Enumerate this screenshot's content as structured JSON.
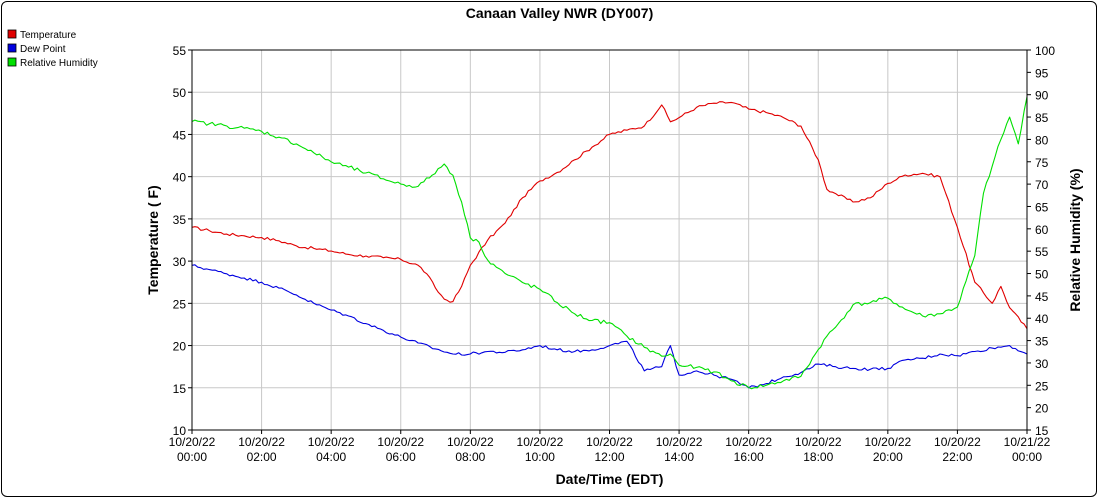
{
  "chart_data": {
    "type": "line",
    "title": "Canaan Valley NWR (DY007)",
    "xlabel": "Date/Time (EDT)",
    "ylabel_left": "Temperature ( F)",
    "ylabel_right": "Relative Humidity (%)",
    "ylim_left": [
      10,
      55
    ],
    "ylim_right": [
      15,
      100
    ],
    "y_ticks_left": [
      "10",
      "15",
      "20",
      "25",
      "30",
      "35",
      "40",
      "45",
      "50",
      "55"
    ],
    "y_ticks_right": [
      "15",
      "20",
      "25",
      "30",
      "35",
      "40",
      "45",
      "50",
      "55",
      "60",
      "65",
      "70",
      "75",
      "80",
      "85",
      "90",
      "95",
      "100"
    ],
    "x_range_hours": [
      0,
      24
    ],
    "x_ticks": [
      {
        "date": "10/20/22",
        "time": "00:00"
      },
      {
        "date": "10/20/22",
        "time": "02:00"
      },
      {
        "date": "10/20/22",
        "time": "04:00"
      },
      {
        "date": "10/20/22",
        "time": "06:00"
      },
      {
        "date": "10/20/22",
        "time": "08:00"
      },
      {
        "date": "10/20/22",
        "time": "10:00"
      },
      {
        "date": "10/20/22",
        "time": "12:00"
      },
      {
        "date": "10/20/22",
        "time": "14:00"
      },
      {
        "date": "10/20/22",
        "time": "16:00"
      },
      {
        "date": "10/20/22",
        "time": "18:00"
      },
      {
        "date": "10/20/22",
        "time": "20:00"
      },
      {
        "date": "10/20/22",
        "time": "22:00"
      },
      {
        "date": "10/21/22",
        "time": "00:00"
      }
    ],
    "grid": true,
    "legend_position": "top-left",
    "x_unit": "hours since 10/20/22 00:00",
    "series": [
      {
        "name": "Temperature",
        "axis": "left",
        "color": "#e00000",
        "x": [
          0,
          0.5,
          1,
          1.5,
          2,
          2.5,
          3,
          3.5,
          4,
          4.5,
          5,
          5.5,
          6,
          6.5,
          6.75,
          7,
          7.25,
          7.5,
          7.75,
          8,
          8.5,
          9,
          9.5,
          10,
          10.5,
          11,
          11.5,
          12,
          12.5,
          13,
          13.5,
          13.75,
          14,
          14.5,
          15,
          15.5,
          16,
          16.5,
          17,
          17.5,
          18,
          18.25,
          18.5,
          19,
          19.5,
          20,
          20.5,
          21,
          21.5,
          22,
          22.5,
          23,
          23.25,
          23.5,
          24
        ],
        "y": [
          34,
          33.6,
          33.2,
          33,
          32.8,
          32.4,
          31.8,
          31.5,
          31.2,
          30.8,
          30.6,
          30.4,
          30.2,
          29.5,
          28.5,
          26.8,
          25.5,
          25.2,
          27,
          29.5,
          32.5,
          34.5,
          37.5,
          39.5,
          40.5,
          42,
          43.5,
          45,
          45.5,
          46,
          48.5,
          46.5,
          47,
          48.2,
          48.7,
          48.8,
          48,
          47.6,
          47,
          46,
          42,
          38.5,
          38,
          37,
          37.5,
          39.2,
          40.2,
          40.4,
          40,
          34,
          27.5,
          25,
          27,
          24.5,
          22
        ]
      },
      {
        "name": "Dew Point",
        "axis": "left",
        "color": "#0000e0",
        "x": [
          0,
          0.5,
          1,
          1.5,
          2,
          2.5,
          3,
          3.5,
          4,
          4.5,
          5,
          5.5,
          6,
          6.5,
          7,
          7.5,
          8,
          8.5,
          9,
          9.5,
          10,
          10.5,
          11,
          11.5,
          12,
          12.5,
          13,
          13.5,
          13.75,
          14,
          14.5,
          15,
          15.5,
          16,
          16.5,
          17,
          17.5,
          18,
          18.5,
          19,
          19.5,
          20,
          20.5,
          21,
          21.5,
          22,
          22.5,
          23,
          23.5,
          24
        ],
        "y": [
          29.5,
          29,
          28.5,
          28,
          27.5,
          26.8,
          26,
          25,
          24.2,
          23.5,
          22.6,
          21.8,
          21,
          20.3,
          19.6,
          19,
          19,
          19.3,
          19.2,
          19.5,
          20,
          19.5,
          19.3,
          19.5,
          20,
          20.5,
          17,
          17.5,
          20,
          16.5,
          17,
          16.5,
          16,
          15,
          15.5,
          16.3,
          16.8,
          17.8,
          17.5,
          17.3,
          17.2,
          17.3,
          18.3,
          18.5,
          19,
          18.8,
          19.3,
          19.7,
          20,
          19
        ]
      },
      {
        "name": "Relative Humidity",
        "axis": "right",
        "color": "#00e000",
        "x": [
          0,
          0.5,
          1,
          1.5,
          2,
          2.5,
          3,
          3.5,
          4,
          4.5,
          5,
          5.5,
          6,
          6.5,
          6.9,
          7.25,
          7.5,
          7.75,
          8,
          8.25,
          8.5,
          9,
          9.5,
          10,
          10.5,
          11,
          11.5,
          12,
          12.5,
          13,
          13.5,
          13.75,
          14,
          14.5,
          15,
          15.5,
          16,
          16.5,
          17,
          17.5,
          18,
          18.25,
          18.5,
          19,
          19.5,
          20,
          20.5,
          21,
          21.5,
          22,
          22.5,
          22.75,
          23,
          23.25,
          23.5,
          23.75,
          24
        ],
        "y": [
          84,
          83.5,
          83,
          82.5,
          81.8,
          80.5,
          79,
          77,
          75,
          73.8,
          72.5,
          71.2,
          70,
          69.5,
          72,
          74.5,
          72,
          66,
          58,
          57,
          53,
          50,
          48,
          46.5,
          43.5,
          41,
          39.5,
          39,
          36,
          33.5,
          31.5,
          32,
          29.5,
          29,
          28,
          26,
          24.5,
          25,
          26,
          27,
          33,
          36,
          38,
          43,
          43.5,
          44.5,
          42,
          40.5,
          41,
          42.5,
          54,
          68,
          74,
          80,
          85,
          79,
          89.5
        ]
      }
    ]
  },
  "legend": {
    "items": [
      {
        "label": "Temperature",
        "color": "#e00000"
      },
      {
        "label": "Dew Point",
        "color": "#0000e0"
      },
      {
        "label": "Relative Humidity",
        "color": "#00e000"
      }
    ]
  }
}
